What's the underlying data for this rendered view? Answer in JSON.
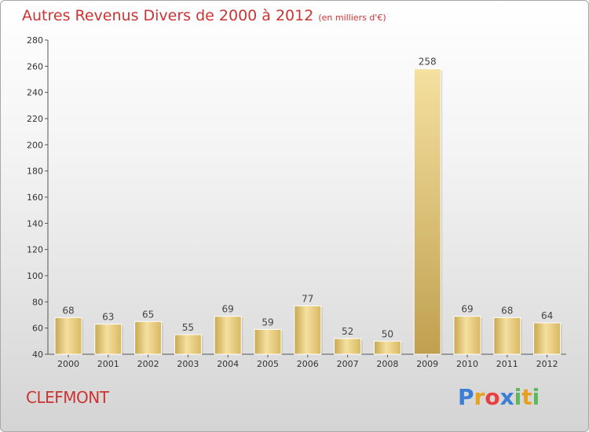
{
  "header": {
    "title": "Autres Revenus Divers de 2000 à 2012",
    "unit": "(en milliers d'€)"
  },
  "footer": {
    "town": "CLEFMONT",
    "logo": {
      "letters": [
        "P",
        "r",
        "o",
        "x",
        "i",
        "t",
        "i"
      ],
      "colors": [
        "#3a7fd5",
        "#e8a020",
        "#e84040",
        "#3a7fd5",
        "#5cb85c",
        "#e8a020",
        "#5cb85c"
      ]
    }
  },
  "colors": {
    "bar_light": "#f5e0a0",
    "bar_dark": "#c8a850",
    "axis": "#555555",
    "title": "#cc3333"
  },
  "chart_data": {
    "type": "bar",
    "title": "Autres Revenus Divers de 2000 à 2012",
    "subtitle": "(en milliers d'€)",
    "categories": [
      "2000",
      "2001",
      "2002",
      "2003",
      "2004",
      "2005",
      "2006",
      "2007",
      "2008",
      "2009",
      "2010",
      "2011",
      "2012"
    ],
    "values": [
      68,
      63,
      65,
      55,
      69,
      59,
      77,
      52,
      50,
      258,
      69,
      68,
      64
    ],
    "value_labels": [
      "68",
      "63",
      "65",
      "55",
      "69",
      "59",
      "77",
      "52",
      "50",
      "258",
      "69",
      "68",
      "64"
    ],
    "yticks": [
      40,
      60,
      80,
      100,
      120,
      140,
      160,
      180,
      200,
      220,
      240,
      260,
      280
    ],
    "ylim": [
      40,
      280
    ],
    "xlabel": "",
    "ylabel": "",
    "grid": false,
    "legend": "none"
  }
}
